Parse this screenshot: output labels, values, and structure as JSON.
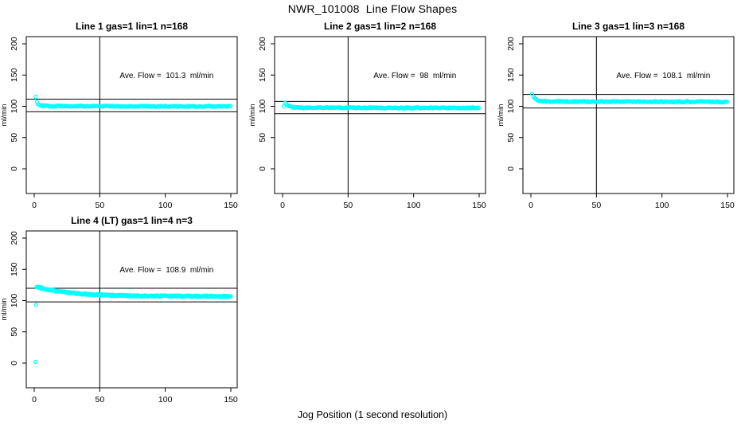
{
  "page": {
    "title": "NWR_101008  Line Flow Shapes",
    "xlabel": "Jog Position (1 second resolution)"
  },
  "colors": {
    "background": "#FFFFFF",
    "axis": "#000000",
    "points": "#00FFFF",
    "text": "#000000"
  },
  "chart_data": {
    "type": "scatter",
    "title": "NWR_101008  Line Flow Shapes",
    "xlabel": "Jog Position (1 second resolution)",
    "ylabel": "ml/min",
    "x_ticks": [
      0,
      50,
      100,
      150
    ],
    "y_ticks": [
      0,
      50,
      100,
      150,
      200
    ],
    "xlim": [
      -6,
      155
    ],
    "ylim": [
      -40,
      212
    ],
    "grid": false,
    "legend": "none",
    "marker": "open-circle",
    "marker_color": "#00FFFF",
    "plots": [
      {
        "title": "Line 1 gas=1 lin=1 n=168",
        "n": 168,
        "ave_flow": 101.3,
        "annotation": "Ave. Flow =  101.3  ml/min",
        "annotation_at": {
          "x": 101,
          "y": 150
        },
        "ref_vline_x": 50,
        "ref_hlines": [
          111.4,
          91.2
        ],
        "series_model": {
          "outliers": [
            [
              1,
              115
            ],
            [
              2,
              107
            ]
          ],
          "curve": {
            "x_start": 3,
            "x_end": 150,
            "step": 0.9,
            "y_start": 103.5,
            "y_settle": 100.4,
            "tau": 1.8,
            "drift": -0.7,
            "jitter": 0.9
          }
        },
        "sample_points": [
          [
            1,
            115
          ],
          [
            2,
            107
          ],
          [
            3,
            103
          ],
          [
            5,
            101
          ],
          [
            10,
            100.8
          ],
          [
            25,
            100.6
          ],
          [
            50,
            100.4
          ],
          [
            75,
            100.3
          ],
          [
            100,
            100.2
          ],
          [
            125,
            100.0
          ],
          [
            150,
            99.8
          ]
        ]
      },
      {
        "title": "Line 2 gas=1 lin=2 n=168",
        "n": 168,
        "ave_flow": 98,
        "annotation": "Ave. Flow =  98  ml/min",
        "annotation_at": {
          "x": 101,
          "y": 150
        },
        "ref_vline_x": 50,
        "ref_hlines": [
          107.8,
          88.2
        ],
        "series_model": {
          "outliers": [
            [
              1,
              100
            ]
          ],
          "curve": {
            "x_start": 2,
            "x_end": 150,
            "step": 0.9,
            "y_start": 105,
            "y_settle": 97.8,
            "tau": 3,
            "drift": -0.4,
            "jitter": 0.8
          }
        },
        "sample_points": [
          [
            1,
            100
          ],
          [
            2,
            105
          ],
          [
            4,
            104
          ],
          [
            6,
            102
          ],
          [
            10,
            99
          ],
          [
            25,
            98
          ],
          [
            50,
            97.8
          ],
          [
            75,
            97.7
          ],
          [
            100,
            97.7
          ],
          [
            125,
            97.6
          ],
          [
            150,
            97.5
          ]
        ]
      },
      {
        "title": "Line 3 gas=1 lin=3 n=168",
        "n": 168,
        "ave_flow": 108.1,
        "annotation": "Ave. Flow =  108.1  ml/min",
        "annotation_at": {
          "x": 101,
          "y": 150
        },
        "ref_vline_x": 50,
        "ref_hlines": [
          118.9,
          97.3
        ],
        "series_model": {
          "outliers": [
            [
              1,
              120
            ]
          ],
          "curve": {
            "x_start": 2,
            "x_end": 150,
            "step": 0.9,
            "y_start": 115.5,
            "y_settle": 107.7,
            "tau": 2.2,
            "drift": -0.4,
            "jitter": 0.9
          }
        },
        "sample_points": [
          [
            1,
            120
          ],
          [
            2,
            115
          ],
          [
            3,
            111
          ],
          [
            5,
            108.8
          ],
          [
            10,
            107.9
          ],
          [
            25,
            107.7
          ],
          [
            50,
            107.7
          ],
          [
            75,
            107.6
          ],
          [
            100,
            107.6
          ],
          [
            125,
            107.5
          ],
          [
            150,
            107.4
          ]
        ]
      },
      {
        "title": "Line 4 (LT) gas=1 lin=4 n=3",
        "n": 3,
        "ave_flow": 108.9,
        "annotation": "Ave. Flow =  108.9  ml/min",
        "annotation_at": {
          "x": 101,
          "y": 150
        },
        "ref_vline_x": 50,
        "ref_hlines": [
          119.8,
          98.0
        ],
        "series_model": {
          "outliers": [
            [
              1,
              2
            ],
            [
              1.5,
              93
            ]
          ],
          "curve": {
            "x_start": 2,
            "x_end": 150,
            "step": 0.55,
            "y_start": 122,
            "y_settle": 107.1,
            "tau": 25,
            "drift": -0.3,
            "jitter": 1.1
          }
        },
        "sample_points": [
          [
            1,
            2
          ],
          [
            1.5,
            93
          ],
          [
            2,
            122
          ],
          [
            5,
            120
          ],
          [
            10,
            117.5
          ],
          [
            20,
            113.5
          ],
          [
            30,
            111
          ],
          [
            50,
            109
          ],
          [
            75,
            107.8
          ],
          [
            100,
            107.4
          ],
          [
            125,
            107.2
          ],
          [
            150,
            107.0
          ]
        ]
      }
    ]
  }
}
